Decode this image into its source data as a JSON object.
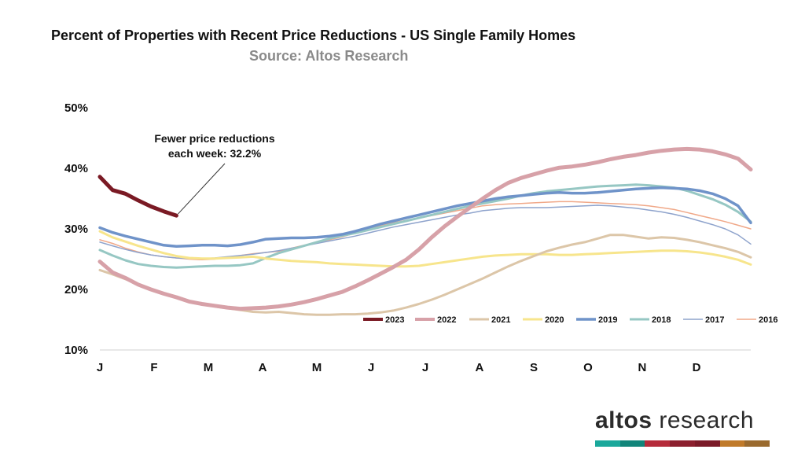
{
  "header": {
    "title": "Percent of Properties with Recent Price Reductions - US Single Family Homes",
    "subtitle": "Source: Altos Research"
  },
  "brand": {
    "word1": "altos",
    "word2": "research",
    "bar_colors": [
      "#1aa89b",
      "#11857a",
      "#b52b3a",
      "#8c1f2e",
      "#7b1a28",
      "#c07a2a",
      "#9a6a2e"
    ]
  },
  "chart_data": {
    "type": "line",
    "title": "Percent of Properties with Recent Price Reductions - US Single Family Homes",
    "subtitle": "Source: Altos Research",
    "xlabel": "",
    "ylabel": "",
    "x_ticks": [
      "J",
      "F",
      "M",
      "A",
      "M",
      "J",
      "J",
      "A",
      "S",
      "O",
      "N",
      "D"
    ],
    "xlim": [
      0,
      52
    ],
    "ylim": [
      10,
      50
    ],
    "y_ticks": [
      "10%",
      "20%",
      "30%",
      "40%",
      "50%"
    ],
    "grid": false,
    "legend_position": "bottom-right",
    "annotation": {
      "text_line1": "Fewer price reductions",
      "text_line2": "each week: 32.2%",
      "points_to_week": 6,
      "points_to_value": 32.2
    },
    "series": [
      {
        "name": "2016",
        "color": "#f0a888",
        "width": 1.5,
        "values": [
          28.2,
          27.6,
          26.8,
          26.2,
          25.7,
          25.4,
          25.2,
          25.0,
          24.9,
          25.0,
          25.3,
          25.6,
          25.9,
          26.1,
          26.3,
          26.8,
          27.3,
          27.8,
          28.2,
          28.7,
          29.3,
          29.9,
          30.5,
          31.0,
          31.4,
          31.8,
          32.2,
          32.6,
          33.0,
          33.4,
          33.8,
          34.0,
          34.1,
          34.2,
          34.3,
          34.4,
          34.5,
          34.5,
          34.4,
          34.3,
          34.2,
          34.1,
          34.0,
          33.8,
          33.5,
          33.2,
          32.7,
          32.2,
          31.7,
          31.2,
          30.6,
          30.0
        ]
      },
      {
        "name": "2017",
        "color": "#8ea3cc",
        "width": 1.5,
        "values": [
          27.8,
          27.2,
          26.6,
          26.1,
          25.7,
          25.4,
          25.2,
          25.1,
          25.1,
          25.2,
          25.4,
          25.6,
          25.8,
          26.1,
          26.4,
          26.8,
          27.2,
          27.6,
          28.0,
          28.4,
          28.8,
          29.3,
          29.8,
          30.3,
          30.7,
          31.1,
          31.5,
          31.9,
          32.3,
          32.6,
          33.0,
          33.2,
          33.4,
          33.5,
          33.5,
          33.5,
          33.6,
          33.7,
          33.8,
          33.9,
          33.8,
          33.6,
          33.4,
          33.1,
          32.8,
          32.4,
          31.9,
          31.3,
          30.7,
          30.0,
          29.0,
          27.5
        ]
      },
      {
        "name": "2018",
        "color": "#96c7c3",
        "width": 3,
        "values": [
          26.5,
          25.6,
          24.8,
          24.2,
          23.9,
          23.7,
          23.6,
          23.7,
          23.8,
          23.9,
          23.9,
          24.0,
          24.3,
          25.2,
          26.0,
          26.6,
          27.2,
          27.8,
          28.4,
          28.9,
          29.3,
          29.8,
          30.3,
          30.8,
          31.3,
          31.8,
          32.3,
          32.8,
          33.3,
          33.8,
          34.2,
          34.6,
          35.0,
          35.5,
          35.9,
          36.2,
          36.4,
          36.6,
          36.8,
          37.0,
          37.1,
          37.2,
          37.3,
          37.2,
          37.0,
          36.8,
          36.3,
          35.6,
          34.9,
          34.0,
          32.8,
          31.2
        ]
      },
      {
        "name": "2019",
        "color": "#6f93c9",
        "width": 3.5,
        "values": [
          30.2,
          29.4,
          28.8,
          28.3,
          27.8,
          27.3,
          27.1,
          27.2,
          27.3,
          27.3,
          27.2,
          27.4,
          27.8,
          28.3,
          28.4,
          28.5,
          28.5,
          28.6,
          28.8,
          29.1,
          29.6,
          30.2,
          30.8,
          31.3,
          31.8,
          32.3,
          32.8,
          33.3,
          33.8,
          34.2,
          34.6,
          35.0,
          35.3,
          35.5,
          35.7,
          35.9,
          36.0,
          35.9,
          35.9,
          36.0,
          36.2,
          36.4,
          36.6,
          36.7,
          36.8,
          36.7,
          36.6,
          36.3,
          35.8,
          35.0,
          33.8,
          31.0
        ]
      },
      {
        "name": "2020",
        "color": "#f7e58c",
        "width": 3,
        "values": [
          29.6,
          28.6,
          27.9,
          27.2,
          26.6,
          26.0,
          25.5,
          25.2,
          25.1,
          25.1,
          25.2,
          25.3,
          25.4,
          25.1,
          24.9,
          24.7,
          24.6,
          24.5,
          24.3,
          24.2,
          24.1,
          24.0,
          23.9,
          23.8,
          23.8,
          23.9,
          24.2,
          24.5,
          24.8,
          25.1,
          25.4,
          25.6,
          25.7,
          25.8,
          25.8,
          25.8,
          25.7,
          25.7,
          25.8,
          25.9,
          26.0,
          26.1,
          26.2,
          26.3,
          26.4,
          26.4,
          26.3,
          26.1,
          25.8,
          25.4,
          24.9,
          24.1
        ]
      },
      {
        "name": "2021",
        "color": "#dcc6a8",
        "width": 3,
        "values": [
          23.2,
          22.5,
          21.7,
          20.9,
          20.1,
          19.4,
          18.8,
          18.1,
          17.6,
          17.2,
          16.9,
          16.6,
          16.3,
          16.2,
          16.3,
          16.1,
          15.9,
          15.8,
          15.8,
          15.9,
          15.9,
          16.0,
          16.2,
          16.5,
          17.0,
          17.6,
          18.3,
          19.1,
          20.0,
          20.9,
          21.8,
          22.8,
          23.8,
          24.7,
          25.5,
          26.3,
          26.9,
          27.4,
          27.8,
          28.4,
          29.0,
          29.0,
          28.7,
          28.4,
          28.6,
          28.5,
          28.2,
          27.8,
          27.3,
          26.8,
          26.2,
          25.3
        ]
      },
      {
        "name": "2022",
        "color": "#d7a1a8",
        "width": 5,
        "values": [
          24.6,
          22.8,
          21.9,
          20.8,
          20.0,
          19.3,
          18.7,
          18.0,
          17.6,
          17.3,
          17.0,
          16.8,
          16.9,
          17.0,
          17.2,
          17.5,
          17.9,
          18.4,
          19.0,
          19.6,
          20.5,
          21.5,
          22.6,
          23.7,
          24.9,
          26.6,
          28.6,
          30.4,
          32.0,
          33.5,
          35.0,
          36.4,
          37.6,
          38.4,
          39.0,
          39.6,
          40.1,
          40.3,
          40.6,
          41.0,
          41.5,
          41.9,
          42.2,
          42.6,
          42.9,
          43.1,
          43.2,
          43.1,
          42.8,
          42.3,
          41.6,
          39.8
        ]
      },
      {
        "name": "2023",
        "color": "#7a1a24",
        "width": 5,
        "values": [
          38.6,
          36.4,
          35.8,
          34.7,
          33.7,
          32.9,
          32.2
        ]
      }
    ]
  }
}
